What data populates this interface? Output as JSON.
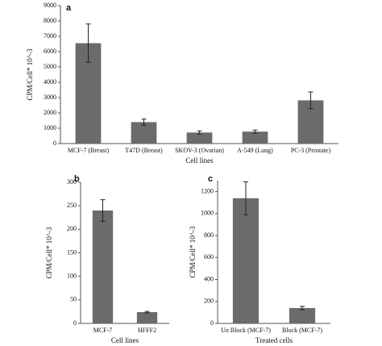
{
  "chart_data": [
    {
      "type": "bar",
      "panel": "a",
      "y_label": "CPM/Cell* 10^-3",
      "x_label": "Cell lines",
      "categories": [
        "MCF-7 (Breast)",
        "T47D (Breast)",
        "SKOV-3 (Ovarian)",
        "A-549  (Lung)",
        "PC-3 (Prostate)"
      ],
      "values": [
        6550,
        1400,
        720,
        780,
        2820
      ],
      "errors": [
        1250,
        200,
        100,
        100,
        550
      ],
      "color": "#6b6b6b",
      "ylim": [
        0,
        9000
      ],
      "yticks": [
        0,
        1000,
        2000,
        3000,
        4000,
        5000,
        6000,
        7000,
        8000,
        9000
      ]
    },
    {
      "type": "bar",
      "panel": "b",
      "y_label": "CPM/Cell* 10^-3",
      "x_label": "Cell lines",
      "categories": [
        "MCF-7",
        "HFFF2"
      ],
      "values": [
        240,
        24
      ],
      "errors": [
        23,
        1.5
      ],
      "color": "#6b6b6b",
      "ylim": [
        0,
        300
      ],
      "yticks": [
        0,
        50,
        100,
        150,
        200,
        250,
        300
      ]
    },
    {
      "type": "bar",
      "panel": "c",
      "y_label": "CPM/Cell* 10^-3",
      "x_label": "Treated cells",
      "categories": [
        "Un Block (MCF-7)",
        "Block (MCF-7)"
      ],
      "values": [
        1140,
        140
      ],
      "errors": [
        150,
        15
      ],
      "color": "#6b6b6b",
      "ylim": [
        0,
        1300
      ],
      "yticks": [
        0,
        200,
        400,
        600,
        800,
        1000,
        1200
      ]
    }
  ]
}
